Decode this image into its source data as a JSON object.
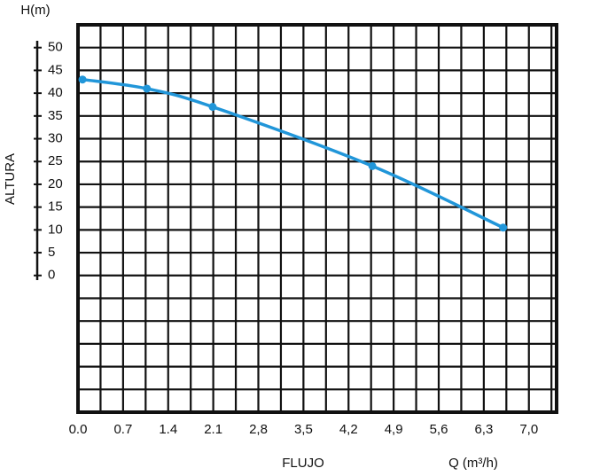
{
  "chart_data": {
    "type": "line",
    "y_label_top": "H(m)",
    "y_label": "ALTURA",
    "x_label": "FLUJO",
    "x_unit_label": "Q (m³/h)",
    "x": [
      0.07,
      1.07,
      2.09,
      4.57,
      6.6
    ],
    "series": [
      {
        "name": "H",
        "color": "#2196d9",
        "values": [
          43,
          41,
          37,
          24,
          10.5
        ]
      }
    ],
    "xlim": [
      0,
      7.43
    ],
    "ylim": [
      -30,
      55
    ],
    "xticks": [
      {
        "value": 0,
        "label": "0.0"
      },
      0.7,
      1.4,
      2.1,
      {
        "value": 2.8,
        "label": "2,8"
      },
      {
        "value": 3.5,
        "label": "3,5"
      },
      {
        "value": 4.2,
        "label": "4,2"
      },
      {
        "value": 4.9,
        "label": "4,9"
      },
      {
        "value": 5.6,
        "label": "5,6"
      },
      {
        "value": 6.3,
        "label": "6,3"
      },
      {
        "value": 7.0,
        "label": "7,0"
      }
    ],
    "yticks": [
      0,
      5,
      10,
      15,
      20,
      25,
      30,
      35,
      40,
      45,
      50
    ],
    "grid": true
  }
}
